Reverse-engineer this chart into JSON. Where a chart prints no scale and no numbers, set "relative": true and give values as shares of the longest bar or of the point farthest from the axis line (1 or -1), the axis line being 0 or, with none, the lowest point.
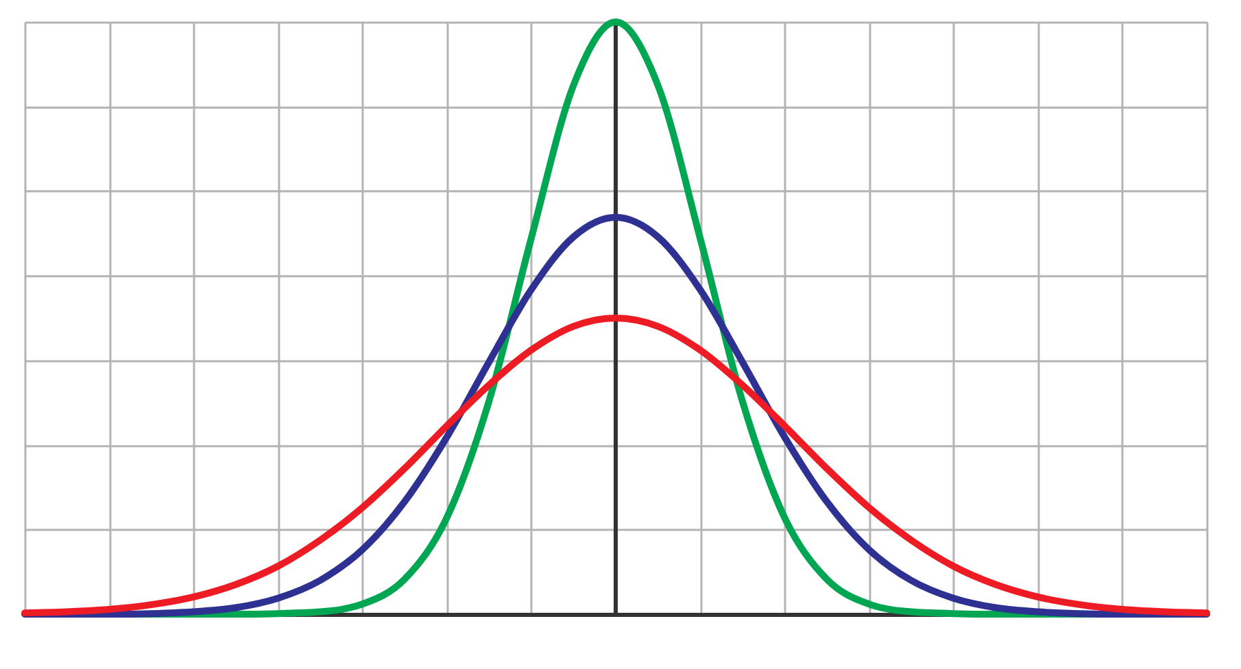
{
  "chart_data": {
    "type": "line",
    "relative": true,
    "grid": true,
    "tick_labels": false,
    "marker": "none",
    "line_style": "solid",
    "categories": [
      null,
      null,
      null,
      null,
      null,
      null,
      null,
      null,
      null,
      null,
      null,
      null,
      null,
      null,
      null,
      null,
      null,
      null,
      null,
      null,
      null,
      null,
      null,
      null,
      null,
      null,
      null,
      null,
      null
    ],
    "series": [
      {
        "color": "#00a651",
        "values": [
          null,
          null,
          0,
          0,
          0,
          0,
          0.001,
          0.004,
          0.017,
          0.059,
          0.163,
          0.36,
          0.635,
          0.893,
          1,
          0.893,
          0.635,
          0.36,
          0.163,
          0.059,
          0.017,
          0.004,
          0.001,
          0,
          0,
          0,
          0,
          null,
          null
        ]
      },
      {
        "color": "#2e3192",
        "values": [
          0,
          0,
          0,
          0.001,
          0.004,
          0.011,
          0.027,
          0.057,
          0.109,
          0.19,
          0.299,
          0.426,
          0.548,
          0.637,
          0.67,
          0.637,
          0.548,
          0.426,
          0.299,
          0.19,
          0.109,
          0.057,
          0.027,
          0.011,
          0.004,
          0.001,
          0,
          0,
          0
        ]
      },
      {
        "color": "#ed1c24",
        "values": [
          0.002,
          0.004,
          0.008,
          0.016,
          0.029,
          0.05,
          0.081,
          0.125,
          0.18,
          0.246,
          0.318,
          0.387,
          0.446,
          0.486,
          0.5,
          0.486,
          0.446,
          0.387,
          0.318,
          0.246,
          0.18,
          0.125,
          0.081,
          0.05,
          0.029,
          0.016,
          0.008,
          0.004,
          0.002
        ]
      }
    ]
  }
}
